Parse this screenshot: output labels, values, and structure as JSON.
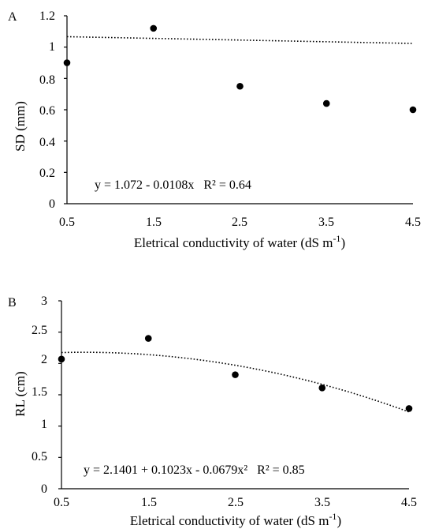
{
  "chart_data": [
    {
      "type": "scatter",
      "panel_label": "A",
      "ylabel": "SD (mm)",
      "xlabel": "Eletrical conductivity of water (dS m",
      "xlabel_sup": "-1",
      "xlabel_end": ")",
      "x_ticks": [
        "0.5",
        "1.5",
        "2.5",
        "3.5",
        "4.5"
      ],
      "y_ticks": [
        "0",
        "0.2",
        "0.4",
        "0.6",
        "0.8",
        "1",
        "1.2"
      ],
      "xlim": [
        0.5,
        4.5
      ],
      "ylim": [
        0,
        1.2
      ],
      "x": [
        0.5,
        1.5,
        2.5,
        3.5,
        4.5
      ],
      "y": [
        0.9,
        1.12,
        0.75,
        0.64,
        0.6
      ],
      "trendline": {
        "kind": "linear",
        "coefficients": [
          1.072,
          -0.0108
        ]
      },
      "equation": "y = 1.072 - 0.0108x   R² = 0.64"
    },
    {
      "type": "scatter",
      "panel_label": "B",
      "ylabel": "RL (cm)",
      "xlabel": "Eletrical conductivity of water (dS m",
      "xlabel_sup": "-1",
      "xlabel_end": ")",
      "x_ticks": [
        "0.5",
        "1.5",
        "2.5",
        "3.5",
        "4.5"
      ],
      "y_ticks": [
        "0",
        "0.5",
        "1",
        "1.5",
        "2",
        "2.5",
        "3"
      ],
      "xlim": [
        0.5,
        4.5
      ],
      "ylim": [
        0,
        3
      ],
      "x": [
        0.5,
        1.5,
        2.5,
        3.5,
        4.5
      ],
      "y": [
        2.07,
        2.4,
        1.82,
        1.61,
        1.28
      ],
      "trendline": {
        "kind": "quadratic",
        "coefficients": [
          2.1401,
          0.1023,
          -0.0679
        ]
      },
      "equation": "y = 2.1401 + 0.1023x - 0.0679x²   R² = 0.85"
    }
  ]
}
